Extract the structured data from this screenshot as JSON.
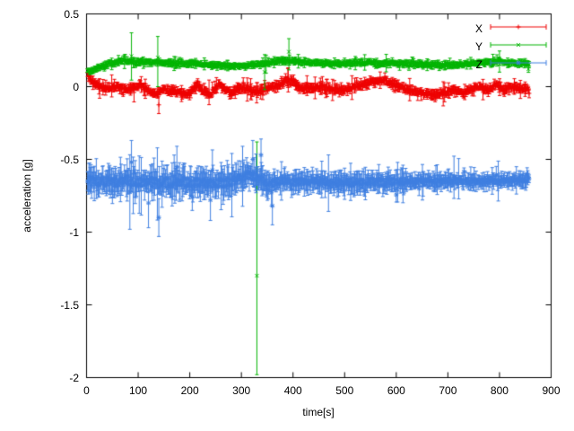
{
  "chart_data": {
    "type": "scatter",
    "style": "points-with-errorbars",
    "title": "",
    "xlabel": "time[s]",
    "ylabel": "acceleration [g]",
    "xlim": [
      0,
      900
    ],
    "ylim": [
      -2,
      0.5
    ],
    "xticks": [
      0,
      100,
      200,
      300,
      400,
      500,
      600,
      700,
      800,
      900
    ],
    "yticks": [
      {
        "v": 0.5,
        "label": "0.5"
      },
      {
        "v": 0,
        "label": "0"
      },
      {
        "v": -0.5,
        "label": "-0.5"
      },
      {
        "v": -1,
        "label": "-1"
      },
      {
        "v": -1.5,
        "label": "-1.5"
      },
      {
        "v": -2,
        "label": "-2"
      }
    ],
    "grid": false,
    "legend": {
      "position": "top-right"
    },
    "sample_step": 1.3,
    "x_data_range": [
      2,
      858
    ],
    "series": [
      {
        "name": "X",
        "color": "#ee0000",
        "marker": "plus",
        "noise": 0.013,
        "errbar": 0.022,
        "profile": [
          {
            "until": 901,
            "scale": 1
          }
        ],
        "anchors": [
          [
            0,
            0.1
          ],
          [
            12,
            0.03
          ],
          [
            25,
            0.0
          ],
          [
            40,
            -0.01
          ],
          [
            60,
            0.0
          ],
          [
            75,
            -0.02
          ],
          [
            90,
            -0.01
          ],
          [
            105,
            0.01
          ],
          [
            120,
            -0.03
          ],
          [
            135,
            -0.05
          ],
          [
            150,
            -0.02
          ],
          [
            170,
            -0.03
          ],
          [
            185,
            -0.05
          ],
          [
            200,
            -0.045
          ],
          [
            215,
            0.015
          ],
          [
            228,
            -0.04
          ],
          [
            242,
            -0.05
          ],
          [
            255,
            0.015
          ],
          [
            268,
            -0.02
          ],
          [
            282,
            -0.05
          ],
          [
            295,
            -0.005
          ],
          [
            310,
            -0.02
          ],
          [
            325,
            -0.03
          ],
          [
            340,
            -0.03
          ],
          [
            355,
            -0.005
          ],
          [
            372,
            0.0
          ],
          [
            385,
            0.045
          ],
          [
            398,
            0.045
          ],
          [
            410,
            -0.005
          ],
          [
            425,
            -0.015
          ],
          [
            445,
            0.0
          ],
          [
            465,
            -0.01
          ],
          [
            485,
            -0.02
          ],
          [
            505,
            -0.02
          ],
          [
            525,
            0.005
          ],
          [
            545,
            0.025
          ],
          [
            565,
            0.045
          ],
          [
            578,
            0.05
          ],
          [
            592,
            0.02
          ],
          [
            606,
            0.0
          ],
          [
            622,
            -0.02
          ],
          [
            640,
            -0.04
          ],
          [
            658,
            -0.05
          ],
          [
            676,
            -0.055
          ],
          [
            694,
            -0.045
          ],
          [
            712,
            -0.025
          ],
          [
            730,
            -0.045
          ],
          [
            748,
            -0.02
          ],
          [
            762,
            0.0
          ],
          [
            778,
            -0.025
          ],
          [
            795,
            0.02
          ],
          [
            808,
            -0.03
          ],
          [
            820,
            0.0
          ],
          [
            838,
            -0.012
          ],
          [
            858,
            -0.012
          ]
        ],
        "outliers": [
          {
            "t": 92,
            "v": -0.04,
            "lo": -0.105,
            "hi": 0.02
          },
          {
            "t": 140,
            "v": -0.125,
            "lo": -0.185,
            "hi": -0.065
          },
          {
            "t": 390,
            "v": 0.06,
            "lo": -0.005,
            "hi": 0.125
          },
          {
            "t": 768,
            "v": -0.02,
            "lo": -0.09,
            "hi": 0.05
          }
        ]
      },
      {
        "name": "Y",
        "color": "#00b400",
        "marker": "cross",
        "noise": 0.01,
        "errbar": 0.016,
        "profile": [
          {
            "until": 901,
            "scale": 1
          }
        ],
        "anchors": [
          [
            0,
            0.1
          ],
          [
            8,
            0.11
          ],
          [
            18,
            0.125
          ],
          [
            30,
            0.145
          ],
          [
            45,
            0.16
          ],
          [
            60,
            0.17
          ],
          [
            80,
            0.175
          ],
          [
            100,
            0.17
          ],
          [
            120,
            0.165
          ],
          [
            140,
            0.17
          ],
          [
            160,
            0.165
          ],
          [
            180,
            0.16
          ],
          [
            200,
            0.158
          ],
          [
            220,
            0.155
          ],
          [
            240,
            0.15
          ],
          [
            260,
            0.148
          ],
          [
            280,
            0.145
          ],
          [
            300,
            0.14
          ],
          [
            315,
            0.148
          ],
          [
            330,
            0.155
          ],
          [
            345,
            0.16
          ],
          [
            360,
            0.168
          ],
          [
            375,
            0.175
          ],
          [
            390,
            0.178
          ],
          [
            405,
            0.17
          ],
          [
            425,
            0.163
          ],
          [
            450,
            0.16
          ],
          [
            480,
            0.158
          ],
          [
            510,
            0.16
          ],
          [
            540,
            0.165
          ],
          [
            570,
            0.162
          ],
          [
            600,
            0.158
          ],
          [
            630,
            0.158
          ],
          [
            660,
            0.152
          ],
          [
            690,
            0.15
          ],
          [
            720,
            0.153
          ],
          [
            750,
            0.158
          ],
          [
            775,
            0.168
          ],
          [
            795,
            0.175
          ],
          [
            810,
            0.168
          ],
          [
            825,
            0.16
          ],
          [
            840,
            0.16
          ],
          [
            858,
            0.16
          ]
        ],
        "outliers": [
          {
            "t": 87,
            "v": 0.21,
            "lo": 0.045,
            "hi": 0.37
          },
          {
            "t": 138,
            "v": 0.2,
            "lo": 0.0,
            "hi": 0.345
          },
          {
            "t": 330,
            "v": -1.3,
            "lo": -1.98,
            "hi": -0.38
          },
          {
            "t": 345,
            "v": 0.1,
            "lo": -0.02,
            "hi": 0.22
          },
          {
            "t": 392,
            "v": 0.24,
            "lo": 0.115,
            "hi": 0.33
          },
          {
            "t": 800,
            "v": 0.17,
            "lo": 0.1,
            "hi": 0.245
          }
        ]
      },
      {
        "name": "Z",
        "color": "#3f7fe0",
        "marker": "star",
        "noise": 0.025,
        "errbar": 0.055,
        "profile": [
          {
            "until": 350,
            "scale": 1.25
          },
          {
            "until": 620,
            "scale": 1.0
          },
          {
            "until": 901,
            "scale": 0.7
          }
        ],
        "anchors": [
          [
            0,
            -0.645
          ],
          [
            20,
            -0.66
          ],
          [
            40,
            -0.65
          ],
          [
            60,
            -0.66
          ],
          [
            80,
            -0.645
          ],
          [
            100,
            -0.658
          ],
          [
            120,
            -0.65
          ],
          [
            140,
            -0.668
          ],
          [
            160,
            -0.66
          ],
          [
            185,
            -0.652
          ],
          [
            210,
            -0.66
          ],
          [
            240,
            -0.662
          ],
          [
            270,
            -0.658
          ],
          [
            295,
            -0.635
          ],
          [
            315,
            -0.605
          ],
          [
            330,
            -0.62
          ],
          [
            345,
            -0.648
          ],
          [
            365,
            -0.66
          ],
          [
            385,
            -0.645
          ],
          [
            405,
            -0.658
          ],
          [
            430,
            -0.652
          ],
          [
            460,
            -0.658
          ],
          [
            490,
            -0.66
          ],
          [
            520,
            -0.66
          ],
          [
            550,
            -0.652
          ],
          [
            580,
            -0.658
          ],
          [
            610,
            -0.655
          ],
          [
            640,
            -0.652
          ],
          [
            670,
            -0.65
          ],
          [
            700,
            -0.645
          ],
          [
            730,
            -0.648
          ],
          [
            760,
            -0.65
          ],
          [
            790,
            -0.648
          ],
          [
            820,
            -0.642
          ],
          [
            858,
            -0.64
          ]
        ],
        "outliers": [
          {
            "t": 87,
            "v": -0.52,
            "lo": -0.7,
            "hi": -0.37
          },
          {
            "t": 120,
            "v": -0.8,
            "lo": -0.97,
            "hi": -0.63
          },
          {
            "t": 140,
            "v": -0.9,
            "lo": -1.03,
            "hi": -0.77
          },
          {
            "t": 175,
            "v": -0.55,
            "lo": -0.7,
            "hi": -0.41
          },
          {
            "t": 240,
            "v": -0.78,
            "lo": -0.92,
            "hi": -0.64
          },
          {
            "t": 322,
            "v": -0.5,
            "lo": -0.63,
            "hi": -0.37
          },
          {
            "t": 338,
            "v": -0.47,
            "lo": -0.58,
            "hi": -0.36
          },
          {
            "t": 360,
            "v": -0.82,
            "lo": -0.95,
            "hi": -0.69
          }
        ]
      }
    ]
  }
}
